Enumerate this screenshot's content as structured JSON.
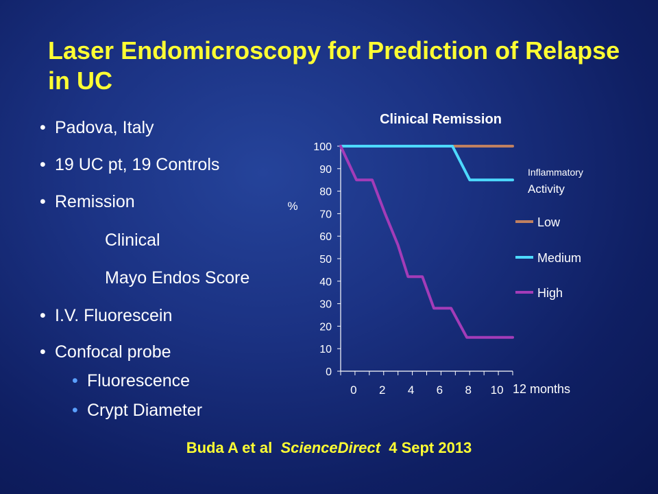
{
  "slide": {
    "title": "Laser Endomicroscopy for Prediction of Relapse in UC",
    "bullets": [
      {
        "text": "Padova, Italy",
        "level": 1
      },
      {
        "text": "19 UC pt, 19 Controls",
        "level": 1
      },
      {
        "text": "Remission",
        "level": 1
      },
      {
        "text": "Clinical",
        "level": 2
      },
      {
        "text": "Mayo Endos Score",
        "level": 2
      },
      {
        "text": "I.V. Fluorescein",
        "level": 1
      },
      {
        "text": "Confocal probe",
        "level": 1
      },
      {
        "text": "Fluorescence",
        "level": 3
      },
      {
        "text": "Crypt Diameter",
        "level": 3
      }
    ],
    "citation": {
      "authors": "Buda A et al",
      "journal": "ScienceDirect",
      "date": "4 Sept 2013"
    },
    "colors": {
      "title": "#ffff33",
      "background": "#1b3283"
    }
  },
  "chart_data": {
    "type": "line",
    "title": "Clinical Remission",
    "ylabel": "%",
    "xlabel": "12 months",
    "ylim": [
      0,
      100
    ],
    "yticks": [
      0,
      10,
      20,
      30,
      40,
      50,
      60,
      70,
      80,
      90,
      100
    ],
    "xlim": [
      0,
      12
    ],
    "xticks": [
      0,
      2,
      4,
      6,
      8,
      10
    ],
    "legend_title": "Inflammatory Activity",
    "legend_position": "right",
    "series": [
      {
        "name": "Low",
        "color": "#c08060",
        "x": [
          0,
          12
        ],
        "y": [
          100,
          100
        ]
      },
      {
        "name": "Medium",
        "color": "#4dd9ff",
        "x": [
          0,
          7.8,
          9.0,
          12
        ],
        "y": [
          100,
          100,
          85,
          85
        ]
      },
      {
        "name": "High",
        "color": "#a33cb8",
        "x": [
          0,
          1.1,
          2.2,
          3.1,
          4.0,
          4.7,
          5.7,
          6.5,
          7.7,
          8.8,
          12
        ],
        "y": [
          100,
          85,
          85,
          70,
          56,
          42,
          42,
          28,
          28,
          15,
          15
        ]
      }
    ]
  }
}
